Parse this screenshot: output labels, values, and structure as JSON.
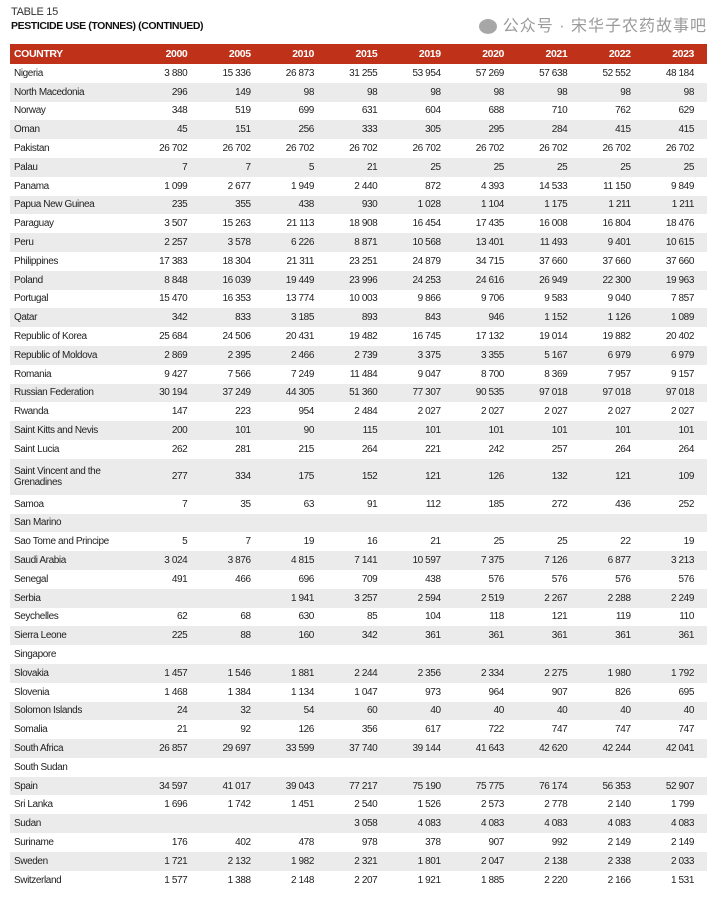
{
  "table_label": "TABLE 15",
  "table_title": "PESTICIDE USE (TONNES) (CONTINUED)",
  "header_color": "#c0311a",
  "columns": [
    "COUNTRY",
    "2000",
    "2005",
    "2010",
    "2015",
    "2019",
    "2020",
    "2021",
    "2022",
    "2023"
  ],
  "rows": [
    [
      "Nigeria",
      "3 880",
      "15 336",
      "26 873",
      "31 255",
      "53 954",
      "57 269",
      "57 638",
      "52 552",
      "48 184"
    ],
    [
      "North Macedonia",
      "296",
      "149",
      "98",
      "98",
      "98",
      "98",
      "98",
      "98",
      "98"
    ],
    [
      "Norway",
      "348",
      "519",
      "699",
      "631",
      "604",
      "688",
      "710",
      "762",
      "629"
    ],
    [
      "Oman",
      "45",
      "151",
      "256",
      "333",
      "305",
      "295",
      "284",
      "415",
      "415"
    ],
    [
      "Pakistan",
      "26 702",
      "26 702",
      "26 702",
      "26 702",
      "26 702",
      "26 702",
      "26 702",
      "26 702",
      "26 702"
    ],
    [
      "Palau",
      "7",
      "7",
      "5",
      "21",
      "25",
      "25",
      "25",
      "25",
      "25"
    ],
    [
      "Panama",
      "1 099",
      "2 677",
      "1 949",
      "2 440",
      "872",
      "4 393",
      "14 533",
      "11 150",
      "9 849"
    ],
    [
      "Papua New Guinea",
      "235",
      "355",
      "438",
      "930",
      "1 028",
      "1 104",
      "1 175",
      "1 211",
      "1 211"
    ],
    [
      "Paraguay",
      "3 507",
      "15 263",
      "21 113",
      "18 908",
      "16 454",
      "17 435",
      "16 008",
      "16 804",
      "18 476"
    ],
    [
      "Peru",
      "2 257",
      "3 578",
      "6 226",
      "8 871",
      "10 568",
      "13 401",
      "11 493",
      "9 401",
      "10 615"
    ],
    [
      "Philippines",
      "17 383",
      "18 304",
      "21 311",
      "23 251",
      "24 879",
      "34 715",
      "37 660",
      "37 660",
      "37 660"
    ],
    [
      "Poland",
      "8 848",
      "16 039",
      "19 449",
      "23 996",
      "24 253",
      "24 616",
      "26 949",
      "22 300",
      "19 963"
    ],
    [
      "Portugal",
      "15 470",
      "16 353",
      "13 774",
      "10 003",
      "9 866",
      "9 706",
      "9 583",
      "9 040",
      "7 857"
    ],
    [
      "Qatar",
      "342",
      "833",
      "3 185",
      "893",
      "843",
      "946",
      "1 152",
      "1 126",
      "1 089"
    ],
    [
      "Republic of Korea",
      "25 684",
      "24 506",
      "20 431",
      "19 482",
      "16 745",
      "17 132",
      "19 014",
      "19 882",
      "20 402"
    ],
    [
      "Republic of Moldova",
      "2 869",
      "2 395",
      "2 466",
      "2 739",
      "3 375",
      "3 355",
      "5 167",
      "6 979",
      "6 979"
    ],
    [
      "Romania",
      "9 427",
      "7 566",
      "7 249",
      "11 484",
      "9 047",
      "8 700",
      "8 369",
      "7 957",
      "9 157"
    ],
    [
      "Russian Federation",
      "30 194",
      "37 249",
      "44 305",
      "51 360",
      "77 307",
      "90 535",
      "97 018",
      "97 018",
      "97 018"
    ],
    [
      "Rwanda",
      "147",
      "223",
      "954",
      "2 484",
      "2 027",
      "2 027",
      "2 027",
      "2 027",
      "2 027"
    ],
    [
      "Saint Kitts and Nevis",
      "200",
      "101",
      "90",
      "115",
      "101",
      "101",
      "101",
      "101",
      "101"
    ],
    [
      "Saint Lucia",
      "262",
      "281",
      "215",
      "264",
      "221",
      "242",
      "257",
      "264",
      "264"
    ],
    [
      "Saint Vincent and the Grenadines",
      "277",
      "334",
      "175",
      "152",
      "121",
      "126",
      "132",
      "121",
      "109"
    ],
    [
      "Samoa",
      "7",
      "35",
      "63",
      "91",
      "112",
      "185",
      "272",
      "436",
      "252"
    ],
    [
      "San Marino",
      "",
      "",
      "",
      "",
      "",
      "",
      "",
      "",
      ""
    ],
    [
      "Sao Tome and Principe",
      "5",
      "7",
      "19",
      "16",
      "21",
      "25",
      "25",
      "22",
      "19"
    ],
    [
      "Saudi Arabia",
      "3 024",
      "3 876",
      "4 815",
      "7 141",
      "10 597",
      "7 375",
      "7 126",
      "6 877",
      "3 213"
    ],
    [
      "Senegal",
      "491",
      "466",
      "696",
      "709",
      "438",
      "576",
      "576",
      "576",
      "576"
    ],
    [
      "Serbia",
      "",
      "",
      "1 941",
      "3 257",
      "2 594",
      "2 519",
      "2 267",
      "2 288",
      "2 249"
    ],
    [
      "Seychelles",
      "62",
      "68",
      "630",
      "85",
      "104",
      "118",
      "121",
      "119",
      "110"
    ],
    [
      "Sierra Leone",
      "225",
      "88",
      "160",
      "342",
      "361",
      "361",
      "361",
      "361",
      "361"
    ],
    [
      "Singapore",
      "",
      "",
      "",
      "",
      "",
      "",
      "",
      "",
      ""
    ],
    [
      "Slovakia",
      "1 457",
      "1 546",
      "1 881",
      "2 244",
      "2 356",
      "2 334",
      "2 275",
      "1 980",
      "1 792"
    ],
    [
      "Slovenia",
      "1 468",
      "1 384",
      "1 134",
      "1 047",
      "973",
      "964",
      "907",
      "826",
      "695"
    ],
    [
      "Solomon Islands",
      "24",
      "32",
      "54",
      "60",
      "40",
      "40",
      "40",
      "40",
      "40"
    ],
    [
      "Somalia",
      "21",
      "92",
      "126",
      "356",
      "617",
      "722",
      "747",
      "747",
      "747"
    ],
    [
      "South Africa",
      "26 857",
      "29 697",
      "33 599",
      "37 740",
      "39 144",
      "41 643",
      "42 620",
      "42 244",
      "42 041"
    ],
    [
      "South Sudan",
      "",
      "",
      "",
      "",
      "",
      "",
      "",
      "",
      ""
    ],
    [
      "Spain",
      "34 597",
      "41 017",
      "39 043",
      "77 217",
      "75 190",
      "75 775",
      "76 174",
      "56 353",
      "52 907"
    ],
    [
      "Sri Lanka",
      "1 696",
      "1 742",
      "1 451",
      "2 540",
      "1 526",
      "2 573",
      "2 778",
      "2 140",
      "1 799"
    ],
    [
      "Sudan",
      "",
      "",
      "",
      "3 058",
      "4 083",
      "4 083",
      "4 083",
      "4 083",
      "4 083"
    ],
    [
      "Suriname",
      "176",
      "402",
      "478",
      "978",
      "378",
      "907",
      "992",
      "2 149",
      "2 149"
    ],
    [
      "Sweden",
      "1 721",
      "2 132",
      "1 982",
      "2 321",
      "1 801",
      "2 047",
      "2 138",
      "2 338",
      "2 033"
    ],
    [
      "Switzerland",
      "1 577",
      "1 388",
      "2 148",
      "2 207",
      "1 921",
      "1 885",
      "2 220",
      "2 166",
      "1 531"
    ]
  ],
  "watermark": "公众号 · 宋华子农药故事吧"
}
